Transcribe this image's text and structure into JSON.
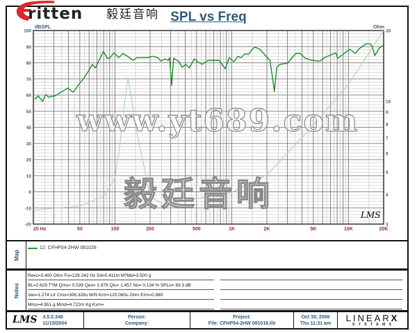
{
  "logo": {
    "text": "ritten",
    "chinese": "毅廷音响",
    "accent": "#e0262e"
  },
  "chart_data": {
    "type": "line",
    "title": "SPL vs Freq",
    "x_scale": "log",
    "xlim": [
      20,
      20000
    ],
    "x_ticks": [
      "20  Hz",
      "50",
      "100",
      "200",
      "500",
      "1K",
      "2K",
      "5K",
      "10K",
      "20K"
    ],
    "x_tick_values": [
      20,
      50,
      100,
      200,
      500,
      1000,
      2000,
      5000,
      10000,
      20000
    ],
    "ylabel_left": "dBSPL",
    "ylim_left": [
      -20,
      100
    ],
    "y_ticks_left": [
      100,
      90,
      80,
      70,
      60,
      50,
      40,
      30,
      20,
      10,
      0,
      -10,
      -20
    ],
    "ylabel_right": "Ohm",
    "y_scale_right": "log",
    "ylim_right": [
      3,
      20
    ],
    "y_ticks_right": [
      20,
      10,
      9,
      8,
      7,
      6,
      5,
      4,
      3
    ],
    "grid": true,
    "series": [
      {
        "axis": "left",
        "color": "#1f8a2a",
        "points": [
          [
            20.6,
            57.4
          ],
          [
            22,
            59.5
          ],
          [
            24,
            56
          ],
          [
            25.5,
            60.4
          ],
          [
            27,
            58.7
          ],
          [
            31,
            59.6
          ],
          [
            35,
            62
          ],
          [
            39.5,
            64.3
          ],
          [
            44,
            61.7
          ],
          [
            48.8,
            66.5
          ],
          [
            53,
            69.5
          ],
          [
            59,
            74.6
          ],
          [
            64,
            79
          ],
          [
            68,
            76.8
          ],
          [
            79.6,
            87
          ],
          [
            86,
            82.8
          ],
          [
            90,
            82.8
          ],
          [
            98,
            86.2
          ],
          [
            108,
            83.2
          ],
          [
            117,
            85.8
          ],
          [
            130,
            83.7
          ],
          [
            143,
            81.5
          ],
          [
            154,
            83.2
          ],
          [
            191,
            83.2
          ],
          [
            211,
            84
          ],
          [
            232,
            83.2
          ],
          [
            249,
            81
          ],
          [
            266,
            82.4
          ],
          [
            286,
            81.5
          ],
          [
            294,
            83.2
          ],
          [
            306,
            66
          ],
          [
            318,
            82.8
          ],
          [
            350,
            81
          ],
          [
            376,
            77.2
          ],
          [
            403,
            79
          ],
          [
            433,
            76.8
          ],
          [
            479,
            82.4
          ],
          [
            510,
            80.6
          ],
          [
            559,
            79
          ],
          [
            610,
            81
          ],
          [
            629,
            81.5
          ],
          [
            779,
            81.5
          ],
          [
            880,
            76.3
          ],
          [
            952,
            83.2
          ],
          [
            1045,
            80.6
          ],
          [
            1130,
            84
          ],
          [
            1200,
            83.2
          ],
          [
            1295,
            85.4
          ],
          [
            1400,
            85.4
          ],
          [
            1500,
            88.4
          ],
          [
            1580,
            89.7
          ],
          [
            1740,
            88.4
          ],
          [
            1940,
            84.5
          ],
          [
            2120,
            81.5
          ],
          [
            2240,
            70.3
          ],
          [
            2320,
            62.2
          ],
          [
            2430,
            77.2
          ],
          [
            2590,
            79
          ],
          [
            3010,
            79.8
          ],
          [
            3530,
            85.8
          ],
          [
            3850,
            85.8
          ],
          [
            4270,
            82.8
          ],
          [
            4800,
            81.5
          ],
          [
            5700,
            81
          ],
          [
            6220,
            83.2
          ],
          [
            7780,
            86.2
          ],
          [
            8080,
            82.8
          ],
          [
            8700,
            84.5
          ],
          [
            10300,
            88.4
          ],
          [
            11400,
            85.8
          ],
          [
            12400,
            88.8
          ],
          [
            14200,
            91.8
          ],
          [
            15200,
            91.8
          ],
          [
            15900,
            90.5
          ],
          [
            16800,
            84.5
          ],
          [
            18400,
            89.2
          ],
          [
            19500,
            90.5
          ],
          [
            20000,
            90.5
          ]
        ]
      },
      {
        "axis": "right",
        "color": "#a8d8a8",
        "points": [
          [
            20,
            3.44
          ],
          [
            50,
            3.58
          ],
          [
            80,
            3.93
          ],
          [
            100,
            4.7
          ],
          [
            110,
            6.5
          ],
          [
            120,
            9.5
          ],
          [
            129,
            12.6
          ],
          [
            140,
            10
          ],
          [
            150,
            7.8
          ],
          [
            180,
            5.1
          ],
          [
            200,
            3.93
          ],
          [
            250,
            3.68
          ],
          [
            300,
            3.66
          ],
          [
            400,
            3.78
          ],
          [
            500,
            3.85
          ],
          [
            1000,
            4.1
          ],
          [
            2000,
            4.86
          ],
          [
            5000,
            7.9
          ],
          [
            10000,
            11.8
          ],
          [
            20000,
            20
          ]
        ]
      }
    ]
  },
  "plot_mark": "LMS",
  "map": {
    "label": "Map",
    "legend": "12: CFHP04-2HW   081028",
    "legend_color": "#3a8a3a"
  },
  "notes": {
    "label": "Notes",
    "lines": [
      "Revc=3.400 Ohm  Fo=129.242 Hz  Sd=5.411m M?Md=3.500 g",
      "BL=2.629 T?M  Qms= 5.535  Qes= 1.978  Qts= 1.457  No= 0.134 %  SPLo= 83.3 dB",
      "Vas=1.274 Ltr  Cms=306.328u M/N  Krm=120.060u Ohm  Erm=0.980",
      "Mms=4.951 g  Mmd=4.722m Kg  Kxm="
    ]
  },
  "footer": {
    "version": "4.5.0.349",
    "build_date": "11/15/2004",
    "person": "Person:",
    "company": "Company:",
    "project": "Project:",
    "file": "File: CFHP04-2HW  081016.lib",
    "date": "Oct 30, 2008",
    "time": "Thu 11:31 am",
    "brand": "LINEAR",
    "brand_x": "X",
    "brand_sub": "S Y S T E M S",
    "lms": "LMS"
  },
  "watermarks": {
    "chinese": "毅廷音响",
    "url": "www.yt689.com"
  }
}
